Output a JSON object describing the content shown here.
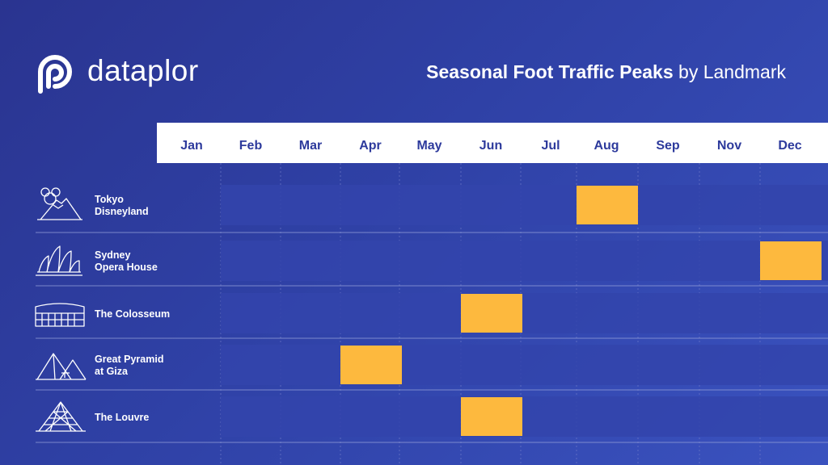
{
  "logo": {
    "name": "dataplor",
    "icon": "dataplor-logo-icon"
  },
  "title": {
    "bold": "Seasonal Foot Traffic Peaks",
    "rest": "by Landmark"
  },
  "colors": {
    "header_bg": "#ffffff",
    "month_text": "#2d3a9c",
    "row_band": "#3344ac",
    "highlight": "#fdb93e",
    "divider": "#8f9ad6",
    "grid": "#6e79c8"
  },
  "chart_data": {
    "type": "heatmap",
    "x": [
      "Jan",
      "Feb",
      "Mar",
      "Apr",
      "May",
      "Jun",
      "Jul",
      "Aug",
      "Sep",
      "Nov",
      "Dec"
    ],
    "rows": [
      {
        "label_lines": [
          "Tokyo",
          "Disneyland"
        ],
        "icon": "castle-mountain-icon",
        "peak": "Aug"
      },
      {
        "label_lines": [
          "Sydney",
          "Opera House"
        ],
        "icon": "opera-house-icon",
        "peak": "Dec"
      },
      {
        "label_lines": [
          "The Colosseum"
        ],
        "icon": "colosseum-icon",
        "peak": "Jun"
      },
      {
        "label_lines": [
          "Great Pyramid",
          "at Giza"
        ],
        "icon": "pyramid-icon",
        "peak": "Apr"
      },
      {
        "label_lines": [
          "The Louvre"
        ],
        "icon": "louvre-pyramid-icon",
        "peak": "Jun"
      }
    ]
  }
}
